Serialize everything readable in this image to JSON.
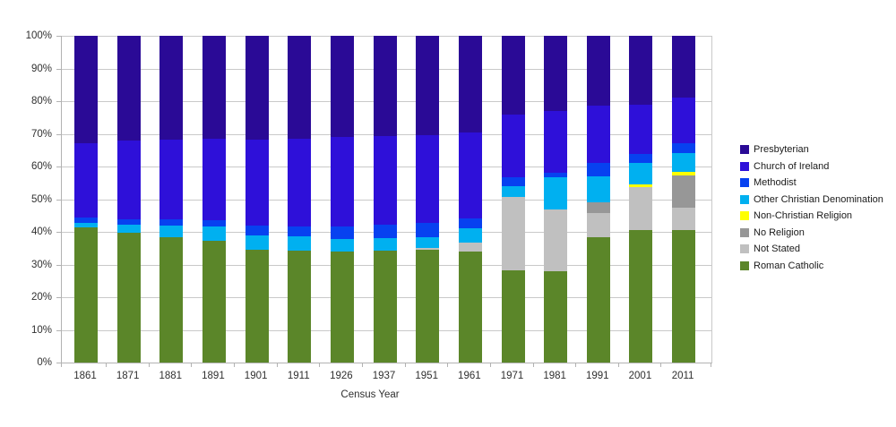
{
  "chart_data": {
    "type": "bar",
    "stacked": true,
    "normalized": "percent",
    "title": "",
    "xlabel": "Census Year",
    "ylabel": "",
    "ylim": [
      0,
      100
    ],
    "y_ticks": [
      "0%",
      "10%",
      "20%",
      "30%",
      "40%",
      "50%",
      "60%",
      "70%",
      "80%",
      "90%",
      "100%"
    ],
    "grid": "horizontal",
    "legend_position": "right",
    "categories": [
      "1861",
      "1871",
      "1881",
      "1891",
      "1901",
      "1911",
      "1926",
      "1937",
      "1951",
      "1961",
      "1971",
      "1981",
      "1991",
      "2001",
      "2011"
    ],
    "series": [
      {
        "name": "Roman Catholic",
        "color": "#5b8629",
        "values": [
          41.4,
          39.6,
          38.3,
          37.2,
          34.5,
          34.2,
          34.0,
          34.2,
          34.4,
          33.9,
          28.3,
          28.0,
          38.4,
          40.5,
          40.5
        ]
      },
      {
        "name": "Not Stated",
        "color": "#c0c0c0",
        "values": [
          0,
          0,
          0,
          0,
          0,
          0,
          0,
          0,
          0.8,
          2.9,
          22.4,
          18.8,
          7.3,
          13.2,
          6.8
        ]
      },
      {
        "name": "No Religion",
        "color": "#979797",
        "values": [
          0,
          0,
          0,
          0,
          0,
          0,
          0,
          0,
          0,
          0,
          0,
          0,
          3.4,
          0,
          9.9
        ]
      },
      {
        "name": "Non-Christian Religion",
        "color": "#ffff00",
        "values": [
          0,
          0,
          0,
          0,
          0,
          0,
          0,
          0,
          0,
          0,
          0,
          0,
          0,
          0.7,
          1.2
        ]
      },
      {
        "name": "Other Christian Denomination",
        "color": "#00b0f0",
        "values": [
          1.3,
          2.7,
          3.7,
          4.4,
          4.3,
          4.3,
          3.9,
          4.0,
          3.3,
          4.3,
          3.3,
          9.8,
          8.0,
          6.6,
          5.7
        ]
      },
      {
        "name": "Methodist",
        "color": "#0741f0",
        "values": [
          1.6,
          1.5,
          1.8,
          2.0,
          3.2,
          3.2,
          3.7,
          4.0,
          4.2,
          2.9,
          2.8,
          1.4,
          3.9,
          2.9,
          3.0
        ]
      },
      {
        "name": "Church of Ireland",
        "color": "#2e10d9",
        "values": [
          22.8,
          24.2,
          24.4,
          25.0,
          26.3,
          26.7,
          27.4,
          27.1,
          27.0,
          26.3,
          19.0,
          18.9,
          17.7,
          15.1,
          14.0
        ]
      },
      {
        "name": "Presbyterian",
        "color": "#2a0a96",
        "values": [
          32.9,
          32.0,
          31.8,
          31.4,
          31.7,
          31.6,
          31.0,
          30.7,
          30.3,
          29.7,
          24.2,
          23.1,
          21.3,
          21.0,
          18.9
        ]
      }
    ],
    "legend_order_top_to_bottom": [
      "Presbyterian",
      "Church of Ireland",
      "Methodist",
      "Other Christian Denomination",
      "Non-Christian Religion",
      "No Religion",
      "Not Stated",
      "Roman Catholic"
    ]
  }
}
